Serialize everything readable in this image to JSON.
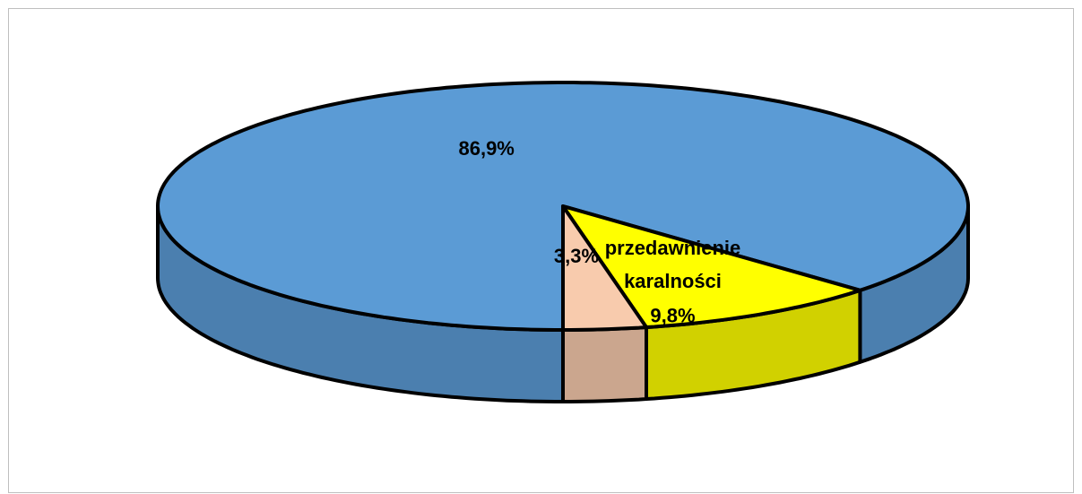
{
  "chart_data": {
    "type": "pie",
    "categories": [
      null,
      "przedawnienie karalności",
      null
    ],
    "values": [
      86.9,
      9.8,
      3.3
    ],
    "value_labels": [
      "86,9%",
      "9,8%",
      "3,3%"
    ],
    "colors": [
      "#5b9bd5",
      "#ffff00",
      "#f8cbad"
    ]
  }
}
